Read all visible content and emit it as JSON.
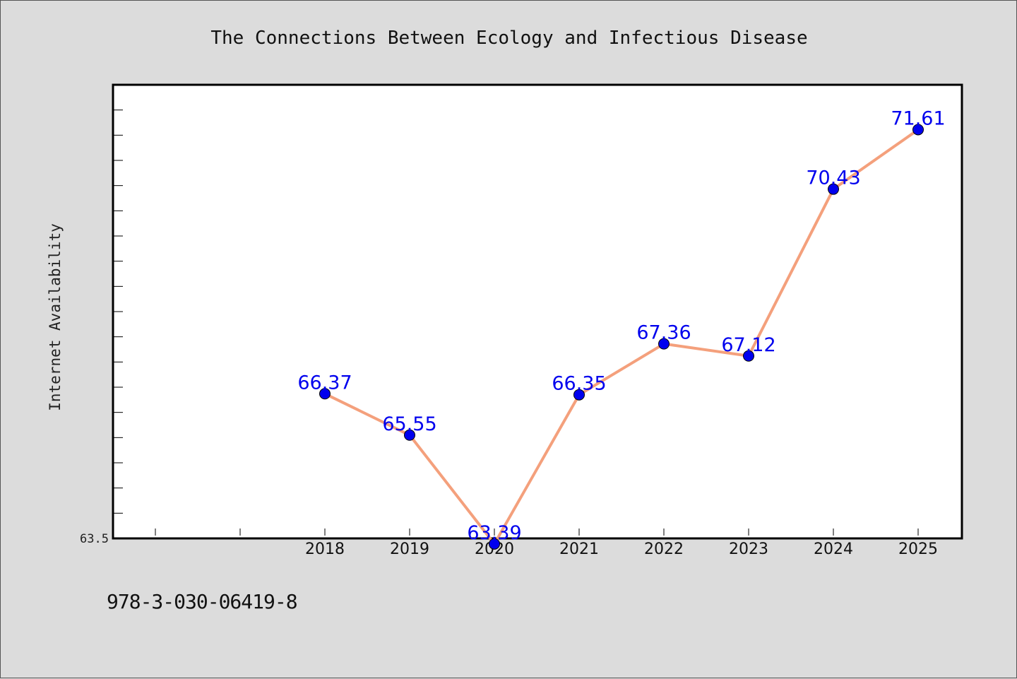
{
  "chart_data": {
    "type": "line",
    "title": "The Connections Between Ecology and Infectious Disease",
    "ylabel": "Internet Availability",
    "xlabel": "",
    "categories": [
      "2018",
      "2019",
      "2020",
      "2021",
      "2022",
      "2023",
      "2024",
      "2025"
    ],
    "series": [
      {
        "values": [
          66.37,
          65.55,
          63.39,
          66.35,
          67.36,
          67.12,
          70.43,
          71.61
        ]
      }
    ],
    "data_labels": [
      "66.37",
      "65.55",
      "63.39",
      "66.35",
      "67.36",
      "67.12",
      "70.43",
      "71.61"
    ],
    "ylim": [
      63.5,
      72.5
    ],
    "y_tick_labels": [
      "63.5"
    ],
    "grid": false,
    "colors": {
      "line": "#f4a07c",
      "marker": "#0000ee",
      "label": "#0000ee"
    }
  },
  "footer": {
    "isbn": "978-3-030-06419-8"
  }
}
